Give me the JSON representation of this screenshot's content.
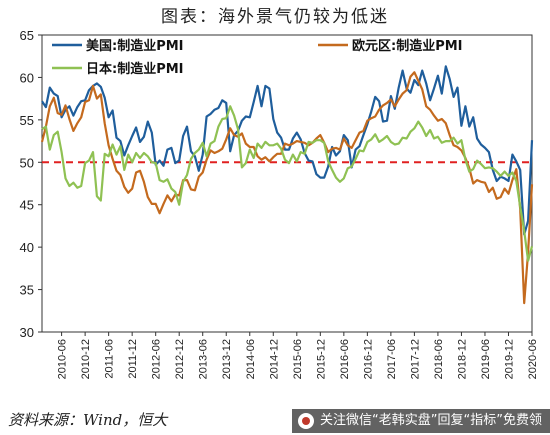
{
  "title": "图表：海外景气仍较为低迷",
  "source": "资料来源：Wind，恒大",
  "watermark": "关注微信“老韩实盘”回复“指标”免费领",
  "chart_data": {
    "type": "line",
    "ylim": [
      30,
      65
    ],
    "yticks": [
      30,
      35,
      40,
      45,
      50,
      55,
      60,
      65
    ],
    "xticks": [
      "2010-06",
      "2010-12",
      "2011-06",
      "2011-12",
      "2012-06",
      "2012-12",
      "2013-06",
      "2013-12",
      "2014-06",
      "2014-12",
      "2015-06",
      "2015-12",
      "2016-06",
      "2016-12",
      "2017-06",
      "2017-12",
      "2018-06",
      "2018-12",
      "2019-06",
      "2019-12",
      "2020-06"
    ],
    "reference_line": 50,
    "start": "2010-01",
    "end": "2020-06",
    "legend_placement": "top",
    "series": [
      {
        "name": "美国:制造业PMI",
        "color": "#1f5e9c",
        "values": [
          57.2,
          56.5,
          58.8,
          58.1,
          57.8,
          55.3,
          56.2,
          56.6,
          55.5,
          56.5,
          57.2,
          57.3,
          58.5,
          59.0,
          59.3,
          58.9,
          57.6,
          55.3,
          56.1,
          52.9,
          52.5,
          50.8,
          52.0,
          53.1,
          54.1,
          52.4,
          53.0,
          54.8,
          53.5,
          49.7,
          50.2,
          49.6,
          51.5,
          51.7,
          49.9,
          50.2,
          53.1,
          54.2,
          51.3,
          50.7,
          49.0,
          50.9,
          55.4,
          55.7,
          56.2,
          56.4,
          57.3,
          57.0,
          51.3,
          53.2,
          53.7,
          54.9,
          55.4,
          55.3,
          57.1,
          59.0,
          56.6,
          59.0,
          58.7,
          55.1,
          53.5,
          52.9,
          51.5,
          51.5,
          52.8,
          53.5,
          52.7,
          51.1,
          50.2,
          50.1,
          48.6,
          48.2,
          48.2,
          49.5,
          51.8,
          50.8,
          51.3,
          53.2,
          52.6,
          49.4,
          51.5,
          51.9,
          53.2,
          54.5,
          56.0,
          57.7,
          57.2,
          54.8,
          54.9,
          57.8,
          56.3,
          58.8,
          60.8,
          58.7,
          58.2,
          59.7,
          59.1,
          60.8,
          59.3,
          57.3,
          58.7,
          60.2,
          58.1,
          61.3,
          59.8,
          57.7,
          58.8,
          54.3,
          56.6,
          54.2,
          55.3,
          52.8,
          52.1,
          51.7,
          51.2,
          49.1,
          47.8,
          48.3,
          48.1,
          47.8,
          50.9,
          50.1,
          49.1,
          41.5,
          43.1,
          52.6
        ]
      },
      {
        "name": "欧元区:制造业PMI",
        "color": "#c46a1e",
        "values": [
          52.4,
          54.2,
          56.6,
          57.6,
          55.8,
          55.6,
          56.7,
          55.1,
          53.7,
          54.6,
          55.3,
          57.1,
          57.3,
          59.0,
          57.5,
          58.0,
          54.6,
          52.0,
          50.4,
          49.0,
          48.5,
          47.1,
          46.4,
          46.9,
          48.8,
          49.0,
          47.7,
          45.9,
          45.1,
          45.1,
          44.0,
          45.1,
          46.1,
          45.4,
          46.2,
          46.1,
          47.9,
          47.9,
          46.8,
          46.7,
          48.3,
          48.8,
          50.3,
          51.4,
          51.1,
          51.3,
          51.6,
          52.7,
          54.0,
          53.2,
          53.0,
          53.4,
          52.2,
          51.8,
          51.8,
          50.7,
          50.3,
          50.6,
          50.1,
          50.6,
          51.0,
          51.0,
          52.2,
          52.0,
          52.2,
          52.5,
          52.4,
          52.3,
          52.0,
          52.3,
          52.8,
          53.2,
          52.3,
          51.2,
          51.6,
          51.7,
          51.5,
          52.8,
          52.0,
          51.7,
          52.6,
          53.5,
          53.7,
          54.9,
          55.2,
          55.4,
          56.2,
          56.7,
          57.0,
          57.4,
          56.6,
          57.4,
          58.1,
          58.5,
          60.1,
          60.6,
          59.6,
          58.6,
          56.6,
          56.2,
          55.5,
          54.9,
          55.1,
          54.6,
          53.2,
          52.0,
          51.8,
          51.4,
          50.5,
          49.3,
          47.5,
          47.9,
          47.7,
          47.6,
          46.5,
          47.0,
          45.7,
          45.9,
          46.9,
          46.3,
          47.9,
          49.2,
          44.5,
          33.4,
          39.4,
          47.4
        ]
      },
      {
        "name": "日本:制造业PMI",
        "color": "#8fc153",
        "values": [
          53.9,
          54.2,
          51.5,
          53.2,
          53.6,
          51.2,
          48.1,
          47.2,
          47.6,
          47.0,
          47.2,
          49.9,
          50.2,
          51.2,
          46.0,
          45.5,
          51.0,
          50.7,
          52.1,
          50.9,
          51.9,
          49.1,
          50.9,
          50.0,
          51.1,
          50.5,
          51.1,
          50.7,
          50.0,
          49.9,
          47.9,
          47.7,
          48.0,
          46.9,
          46.5,
          45.0,
          47.7,
          48.5,
          50.4,
          51.1,
          51.5,
          52.3,
          50.7,
          52.2,
          52.5,
          54.2,
          55.1,
          55.2,
          56.6,
          55.5,
          53.9,
          49.4,
          49.9,
          51.5,
          50.5,
          52.2,
          51.7,
          52.4,
          52.0,
          52.0,
          52.2,
          51.6,
          50.3,
          49.9,
          50.9,
          50.1,
          51.2,
          51.0,
          52.4,
          52.3,
          52.6,
          52.6,
          52.3,
          50.1,
          49.1,
          48.2,
          47.7,
          48.1,
          49.3,
          49.5,
          50.4,
          51.4,
          51.3,
          52.4,
          52.7,
          53.3,
          52.4,
          52.7,
          53.1,
          52.4,
          52.1,
          52.2,
          52.9,
          52.8,
          53.6,
          54.0,
          54.8,
          54.1,
          53.1,
          53.8,
          52.8,
          53.0,
          52.3,
          52.5,
          52.5,
          52.9,
          52.2,
          52.6,
          50.3,
          48.9,
          49.2,
          50.2,
          49.8,
          49.3,
          49.4,
          49.3,
          48.9,
          48.4,
          48.9,
          48.4,
          48.8,
          47.8,
          44.8,
          41.9,
          38.4,
          40.1
        ]
      }
    ]
  }
}
